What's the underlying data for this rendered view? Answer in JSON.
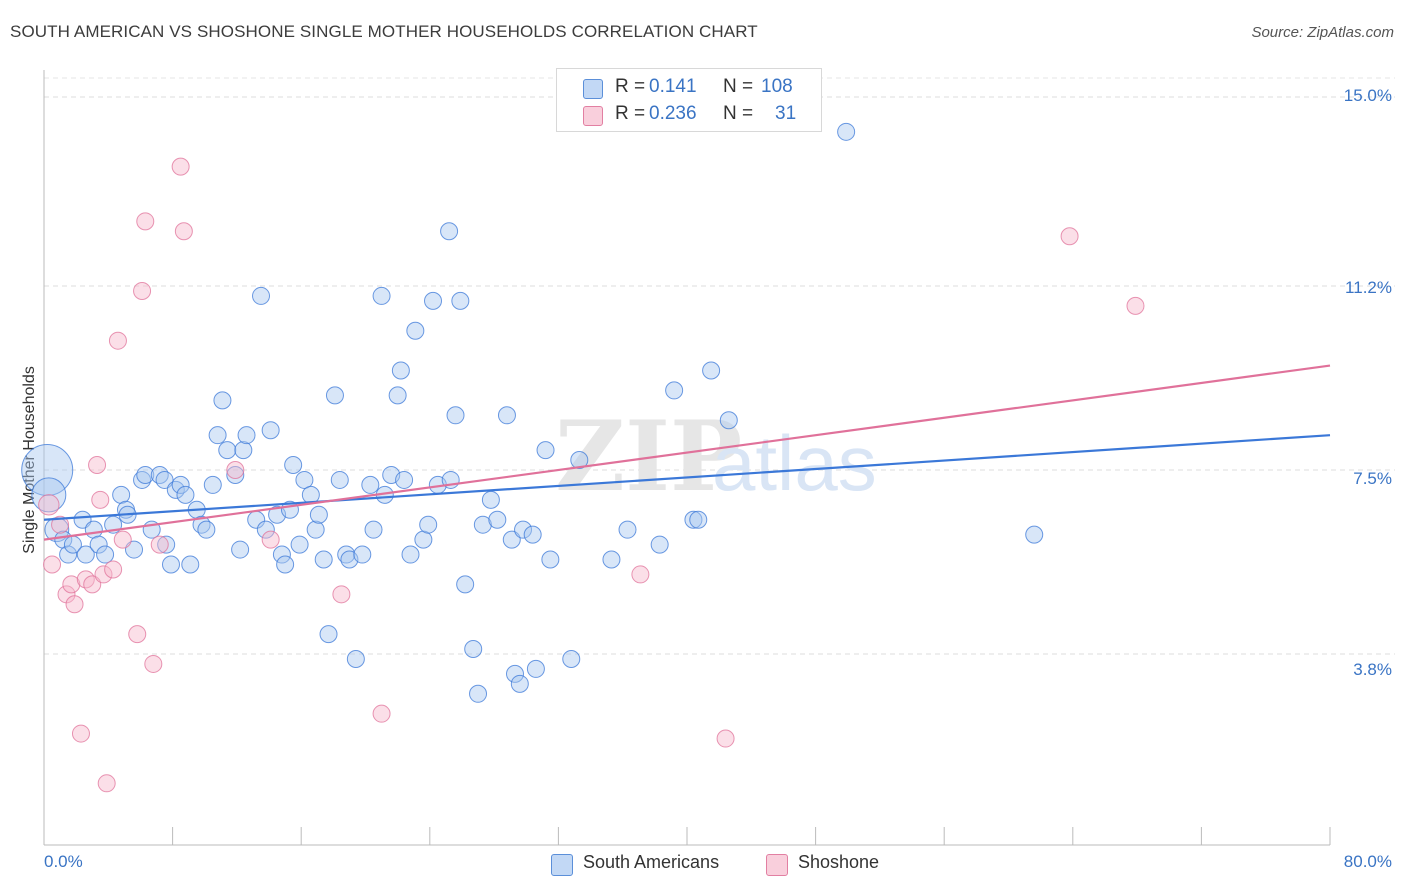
{
  "title": "SOUTH AMERICAN VS SHOSHONE SINGLE MOTHER HOUSEHOLDS CORRELATION CHART",
  "source": "Source: ZipAtlas.com",
  "watermark": {
    "zip": "ZIP",
    "atlas": "atlas"
  },
  "colors": {
    "blue": "#3b78d8",
    "pink": "#e0719a",
    "blue_fill": "#a9c7ef",
    "pink_fill": "#f6b8cc",
    "tick": "#3a74c4"
  },
  "legend": {
    "row1": {
      "r_label": "R =",
      "r_value": "0.141",
      "n_label": "N =",
      "n_value": "108"
    },
    "row2": {
      "r_label": "R =",
      "r_value": "0.236",
      "n_label": "N =",
      "n_value": "31"
    }
  },
  "chart_data": {
    "type": "scatter",
    "title": "SOUTH AMERICAN VS SHOSHONE SINGLE MOTHER HOUSEHOLDS CORRELATION CHART",
    "xlabel": "",
    "ylabel": "Single Mother Households",
    "xlim": [
      0,
      80
    ],
    "ylim": [
      0,
      15.5
    ],
    "x_tick_labels": [
      "0.0%",
      "80.0%"
    ],
    "y_ticks": [
      3.8,
      7.5,
      11.2,
      15.0
    ],
    "y_tick_labels": [
      "3.8%",
      "7.5%",
      "11.2%",
      "15.0%"
    ],
    "grid": true,
    "legend_position": "top-center",
    "series": [
      {
        "name": "South Americans",
        "color": "#3b78d8",
        "r": 0.141,
        "n": 108,
        "trend": {
          "x": [
            0,
            80
          ],
          "y": [
            6.5,
            8.2
          ]
        },
        "points": [
          [
            0.2,
            7.5,
            3
          ],
          [
            0.3,
            7.0,
            2
          ],
          [
            0.8,
            6.3,
            1.4
          ],
          [
            1.2,
            6.1,
            1
          ],
          [
            1.5,
            5.8,
            1
          ],
          [
            1.8,
            6.0,
            1
          ],
          [
            2.4,
            6.5,
            1
          ],
          [
            2.6,
            5.8,
            1
          ],
          [
            3.1,
            6.3,
            1
          ],
          [
            3.4,
            6.0,
            1
          ],
          [
            3.8,
            5.8,
            1
          ],
          [
            4.3,
            6.4,
            1
          ],
          [
            4.8,
            7.0,
            1
          ],
          [
            5.1,
            6.7,
            1
          ],
          [
            5.2,
            6.6,
            1
          ],
          [
            5.6,
            5.9,
            1
          ],
          [
            6.1,
            7.3,
            1
          ],
          [
            6.3,
            7.4,
            1
          ],
          [
            6.7,
            6.3,
            1
          ],
          [
            7.2,
            7.4,
            1
          ],
          [
            7.5,
            7.3,
            1
          ],
          [
            7.6,
            6.0,
            1
          ],
          [
            7.9,
            5.6,
            1
          ],
          [
            8.2,
            7.1,
            1
          ],
          [
            8.5,
            7.2,
            1
          ],
          [
            8.8,
            7.0,
            1
          ],
          [
            9.1,
            5.6,
            1
          ],
          [
            9.5,
            6.7,
            1
          ],
          [
            9.8,
            6.4,
            1
          ],
          [
            10.1,
            6.3,
            1
          ],
          [
            10.5,
            7.2,
            1
          ],
          [
            10.8,
            8.2,
            1
          ],
          [
            11.1,
            8.9,
            1
          ],
          [
            11.4,
            7.9,
            1
          ],
          [
            11.9,
            7.4,
            1
          ],
          [
            12.2,
            5.9,
            1
          ],
          [
            12.4,
            7.9,
            1
          ],
          [
            12.6,
            8.2,
            1
          ],
          [
            13.2,
            6.5,
            1
          ],
          [
            13.5,
            11.0,
            1
          ],
          [
            13.8,
            6.3,
            1
          ],
          [
            14.1,
            8.3,
            1
          ],
          [
            14.5,
            6.6,
            1
          ],
          [
            14.8,
            5.8,
            1
          ],
          [
            15.0,
            5.6,
            1
          ],
          [
            15.3,
            6.7,
            1
          ],
          [
            15.5,
            7.6,
            1
          ],
          [
            15.9,
            6.0,
            1
          ],
          [
            16.2,
            7.3,
            1
          ],
          [
            16.6,
            7.0,
            1
          ],
          [
            16.9,
            6.3,
            1
          ],
          [
            17.1,
            6.6,
            1
          ],
          [
            17.4,
            5.7,
            1
          ],
          [
            17.7,
            4.2,
            1
          ],
          [
            18.1,
            9.0,
            1
          ],
          [
            18.4,
            7.3,
            1
          ],
          [
            18.8,
            5.8,
            1
          ],
          [
            19.0,
            5.7,
            1
          ],
          [
            19.4,
            3.7,
            1
          ],
          [
            19.8,
            5.8,
            1
          ],
          [
            20.3,
            7.2,
            1
          ],
          [
            20.5,
            6.3,
            1
          ],
          [
            21.0,
            11.0,
            1
          ],
          [
            21.2,
            7.0,
            1
          ],
          [
            21.6,
            7.4,
            1
          ],
          [
            22.0,
            9.0,
            1
          ],
          [
            22.2,
            9.5,
            1
          ],
          [
            22.4,
            7.3,
            1
          ],
          [
            22.8,
            5.8,
            1
          ],
          [
            23.1,
            10.3,
            1
          ],
          [
            23.6,
            6.1,
            1
          ],
          [
            23.9,
            6.4,
            1
          ],
          [
            24.2,
            10.9,
            1
          ],
          [
            24.5,
            7.2,
            1
          ],
          [
            25.2,
            12.3,
            1
          ],
          [
            25.3,
            7.3,
            1
          ],
          [
            25.6,
            8.6,
            1
          ],
          [
            25.9,
            10.9,
            1
          ],
          [
            26.2,
            5.2,
            1
          ],
          [
            26.7,
            3.9,
            1
          ],
          [
            27.0,
            3.0,
            1
          ],
          [
            27.3,
            6.4,
            1
          ],
          [
            27.8,
            6.9,
            1
          ],
          [
            28.2,
            6.5,
            1
          ],
          [
            28.8,
            8.6,
            1
          ],
          [
            29.1,
            6.1,
            1
          ],
          [
            29.3,
            3.4,
            1
          ],
          [
            29.6,
            3.2,
            1
          ],
          [
            29.8,
            6.3,
            1
          ],
          [
            30.4,
            6.2,
            1
          ],
          [
            30.6,
            3.5,
            1
          ],
          [
            31.2,
            7.9,
            1
          ],
          [
            31.5,
            5.7,
            1
          ],
          [
            32.8,
            3.7,
            1
          ],
          [
            33.3,
            7.7,
            1
          ],
          [
            35.3,
            5.7,
            1
          ],
          [
            36.3,
            6.3,
            1
          ],
          [
            38.3,
            6.0,
            1
          ],
          [
            39.2,
            9.1,
            1
          ],
          [
            40.4,
            6.5,
            1
          ],
          [
            40.7,
            6.5,
            1
          ],
          [
            41.5,
            9.5,
            1
          ],
          [
            42.6,
            8.5,
            1
          ],
          [
            49.9,
            14.3,
            1
          ],
          [
            61.6,
            6.2,
            1
          ]
        ]
      },
      {
        "name": "Shoshone",
        "color": "#e0719a",
        "r": 0.236,
        "n": 31,
        "trend": {
          "x": [
            0,
            80
          ],
          "y": [
            6.1,
            9.6
          ]
        },
        "points": [
          [
            0.3,
            6.8,
            1.2
          ],
          [
            0.5,
            5.6,
            1
          ],
          [
            1.0,
            6.4,
            1
          ],
          [
            1.4,
            5.0,
            1
          ],
          [
            1.7,
            5.2,
            1
          ],
          [
            1.9,
            4.8,
            1
          ],
          [
            2.3,
            2.2,
            1
          ],
          [
            2.6,
            5.3,
            1
          ],
          [
            3.0,
            5.2,
            1
          ],
          [
            3.3,
            7.6,
            1
          ],
          [
            3.5,
            6.9,
            1
          ],
          [
            3.7,
            5.4,
            1
          ],
          [
            3.9,
            1.2,
            1
          ],
          [
            4.3,
            5.5,
            1
          ],
          [
            4.6,
            10.1,
            1
          ],
          [
            4.9,
            6.1,
            1
          ],
          [
            5.8,
            4.2,
            1
          ],
          [
            6.1,
            11.1,
            1
          ],
          [
            6.3,
            12.5,
            1
          ],
          [
            6.8,
            3.6,
            1
          ],
          [
            7.2,
            6.0,
            1
          ],
          [
            8.5,
            13.6,
            1
          ],
          [
            8.7,
            12.3,
            1
          ],
          [
            11.9,
            7.5,
            1
          ],
          [
            14.1,
            6.1,
            1
          ],
          [
            18.5,
            5.0,
            1
          ],
          [
            21.0,
            2.6,
            1
          ],
          [
            37.1,
            5.4,
            1
          ],
          [
            42.4,
            2.1,
            1
          ],
          [
            63.8,
            12.2,
            1
          ],
          [
            67.9,
            10.8,
            1
          ]
        ]
      }
    ]
  }
}
